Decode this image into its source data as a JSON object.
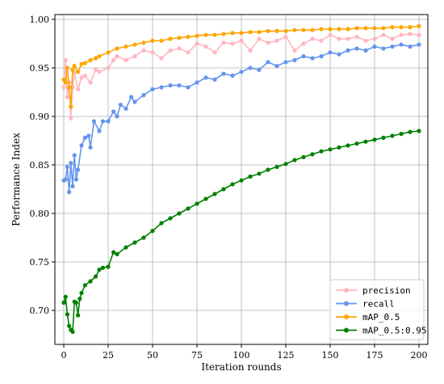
{
  "chart_data": {
    "type": "line",
    "xlabel": "Iteration rounds",
    "ylabel": "Performance Index",
    "xlim": [
      -5,
      205
    ],
    "ylim": [
      0.665,
      1.005
    ],
    "xticks": [
      "0",
      "25",
      "50",
      "75",
      "100",
      "125",
      "150",
      "175",
      "200"
    ],
    "yticks": [
      "0.70",
      "0.75",
      "0.80",
      "0.85",
      "0.90",
      "0.95",
      "1.00"
    ],
    "grid": true,
    "legend_position": "bottom-right",
    "series": [
      {
        "name": "precision",
        "color": "#ffb6c1",
        "points": [
          [
            0,
            0.93
          ],
          [
            1,
            0.958
          ],
          [
            2,
            0.92
          ],
          [
            3,
            0.935
          ],
          [
            4,
            0.898
          ],
          [
            5,
            0.93
          ],
          [
            6,
            0.945
          ],
          [
            8,
            0.928
          ],
          [
            10,
            0.94
          ],
          [
            12,
            0.942
          ],
          [
            15,
            0.935
          ],
          [
            18,
            0.948
          ],
          [
            20,
            0.946
          ],
          [
            25,
            0.95
          ],
          [
            28,
            0.958
          ],
          [
            30,
            0.962
          ],
          [
            35,
            0.958
          ],
          [
            40,
            0.962
          ],
          [
            45,
            0.968
          ],
          [
            50,
            0.966
          ],
          [
            55,
            0.96
          ],
          [
            60,
            0.968
          ],
          [
            65,
            0.97
          ],
          [
            70,
            0.966
          ],
          [
            75,
            0.975
          ],
          [
            80,
            0.972
          ],
          [
            85,
            0.966
          ],
          [
            90,
            0.976
          ],
          [
            95,
            0.975
          ],
          [
            100,
            0.978
          ],
          [
            105,
            0.968
          ],
          [
            110,
            0.98
          ],
          [
            115,
            0.976
          ],
          [
            120,
            0.978
          ],
          [
            125,
            0.982
          ],
          [
            130,
            0.968
          ],
          [
            135,
            0.975
          ],
          [
            140,
            0.98
          ],
          [
            145,
            0.978
          ],
          [
            150,
            0.984
          ],
          [
            155,
            0.98
          ],
          [
            160,
            0.98
          ],
          [
            165,
            0.982
          ],
          [
            170,
            0.978
          ],
          [
            175,
            0.98
          ],
          [
            180,
            0.984
          ],
          [
            185,
            0.98
          ],
          [
            190,
            0.984
          ],
          [
            195,
            0.985
          ],
          [
            200,
            0.984
          ]
        ]
      },
      {
        "name": "recall",
        "color": "#6495ed",
        "points": [
          [
            0,
            0.834
          ],
          [
            1,
            0.835
          ],
          [
            2,
            0.848
          ],
          [
            3,
            0.822
          ],
          [
            4,
            0.852
          ],
          [
            5,
            0.828
          ],
          [
            6,
            0.86
          ],
          [
            7,
            0.835
          ],
          [
            8,
            0.845
          ],
          [
            10,
            0.87
          ],
          [
            12,
            0.878
          ],
          [
            14,
            0.88
          ],
          [
            15,
            0.868
          ],
          [
            17,
            0.895
          ],
          [
            20,
            0.885
          ],
          [
            22,
            0.895
          ],
          [
            25,
            0.895
          ],
          [
            28,
            0.905
          ],
          [
            30,
            0.9
          ],
          [
            32,
            0.912
          ],
          [
            35,
            0.908
          ],
          [
            38,
            0.92
          ],
          [
            40,
            0.915
          ],
          [
            45,
            0.922
          ],
          [
            50,
            0.928
          ],
          [
            55,
            0.93
          ],
          [
            60,
            0.932
          ],
          [
            65,
            0.932
          ],
          [
            70,
            0.93
          ],
          [
            75,
            0.935
          ],
          [
            80,
            0.94
          ],
          [
            85,
            0.938
          ],
          [
            90,
            0.944
          ],
          [
            95,
            0.942
          ],
          [
            100,
            0.946
          ],
          [
            105,
            0.95
          ],
          [
            110,
            0.948
          ],
          [
            115,
            0.956
          ],
          [
            120,
            0.952
          ],
          [
            125,
            0.956
          ],
          [
            130,
            0.958
          ],
          [
            135,
            0.962
          ],
          [
            140,
            0.96
          ],
          [
            145,
            0.962
          ],
          [
            150,
            0.966
          ],
          [
            155,
            0.964
          ],
          [
            160,
            0.968
          ],
          [
            165,
            0.97
          ],
          [
            170,
            0.968
          ],
          [
            175,
            0.972
          ],
          [
            180,
            0.97
          ],
          [
            185,
            0.972
          ],
          [
            190,
            0.974
          ],
          [
            195,
            0.972
          ],
          [
            200,
            0.974
          ]
        ]
      },
      {
        "name": "mAP_0.5",
        "color": "#ffa500",
        "points": [
          [
            0,
            0.938
          ],
          [
            1,
            0.935
          ],
          [
            2,
            0.95
          ],
          [
            3,
            0.93
          ],
          [
            4,
            0.91
          ],
          [
            5,
            0.948
          ],
          [
            6,
            0.952
          ],
          [
            8,
            0.946
          ],
          [
            10,
            0.954
          ],
          [
            12,
            0.955
          ],
          [
            15,
            0.958
          ],
          [
            18,
            0.96
          ],
          [
            20,
            0.962
          ],
          [
            25,
            0.966
          ],
          [
            30,
            0.97
          ],
          [
            35,
            0.972
          ],
          [
            40,
            0.974
          ],
          [
            45,
            0.976
          ],
          [
            50,
            0.978
          ],
          [
            55,
            0.978
          ],
          [
            60,
            0.98
          ],
          [
            65,
            0.981
          ],
          [
            70,
            0.982
          ],
          [
            75,
            0.983
          ],
          [
            80,
            0.984
          ],
          [
            85,
            0.984
          ],
          [
            90,
            0.985
          ],
          [
            95,
            0.986
          ],
          [
            100,
            0.986
          ],
          [
            105,
            0.987
          ],
          [
            110,
            0.987
          ],
          [
            115,
            0.988
          ],
          [
            120,
            0.988
          ],
          [
            125,
            0.988
          ],
          [
            130,
            0.989
          ],
          [
            135,
            0.989
          ],
          [
            140,
            0.989
          ],
          [
            145,
            0.99
          ],
          [
            150,
            0.99
          ],
          [
            155,
            0.99
          ],
          [
            160,
            0.99
          ],
          [
            165,
            0.991
          ],
          [
            170,
            0.991
          ],
          [
            175,
            0.991
          ],
          [
            180,
            0.991
          ],
          [
            185,
            0.992
          ],
          [
            190,
            0.992
          ],
          [
            195,
            0.992
          ],
          [
            200,
            0.993
          ]
        ]
      },
      {
        "name": "mAP_0.5:0.95",
        "color": "#008000",
        "points": [
          [
            0,
            0.708
          ],
          [
            1,
            0.714
          ],
          [
            2,
            0.696
          ],
          [
            3,
            0.684
          ],
          [
            4,
            0.68
          ],
          [
            5,
            0.678
          ],
          [
            6,
            0.709
          ],
          [
            7,
            0.708
          ],
          [
            8,
            0.695
          ],
          [
            9,
            0.712
          ],
          [
            10,
            0.718
          ],
          [
            12,
            0.726
          ],
          [
            15,
            0.73
          ],
          [
            18,
            0.735
          ],
          [
            20,
            0.742
          ],
          [
            22,
            0.744
          ],
          [
            25,
            0.745
          ],
          [
            28,
            0.76
          ],
          [
            30,
            0.758
          ],
          [
            35,
            0.765
          ],
          [
            40,
            0.77
          ],
          [
            45,
            0.775
          ],
          [
            50,
            0.782
          ],
          [
            55,
            0.79
          ],
          [
            60,
            0.795
          ],
          [
            65,
            0.8
          ],
          [
            70,
            0.805
          ],
          [
            75,
            0.81
          ],
          [
            80,
            0.815
          ],
          [
            85,
            0.82
          ],
          [
            90,
            0.825
          ],
          [
            95,
            0.83
          ],
          [
            100,
            0.834
          ],
          [
            105,
            0.838
          ],
          [
            110,
            0.841
          ],
          [
            115,
            0.845
          ],
          [
            120,
            0.848
          ],
          [
            125,
            0.851
          ],
          [
            130,
            0.855
          ],
          [
            135,
            0.858
          ],
          [
            140,
            0.861
          ],
          [
            145,
            0.864
          ],
          [
            150,
            0.866
          ],
          [
            155,
            0.868
          ],
          [
            160,
            0.87
          ],
          [
            165,
            0.872
          ],
          [
            170,
            0.874
          ],
          [
            175,
            0.876
          ],
          [
            180,
            0.878
          ],
          [
            185,
            0.88
          ],
          [
            190,
            0.882
          ],
          [
            195,
            0.884
          ],
          [
            200,
            0.885
          ]
        ]
      }
    ]
  }
}
